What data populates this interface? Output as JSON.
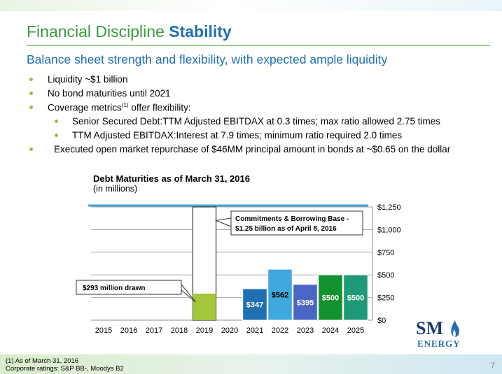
{
  "slide": {
    "title_main": "Financial Discipline",
    "title_accent": "Stability",
    "subtitle": "Balance sheet strength and flexibility, with expected ample liquidity",
    "bullets": [
      {
        "text": "Liquidity ~$1 billion",
        "level": 1
      },
      {
        "text": "No bond maturities until 2021",
        "level": 1
      },
      {
        "text": "Coverage metrics",
        "sup": "(1)",
        "text_after": " offer flexibility:",
        "level": 1
      },
      {
        "text": "Senior Secured Debt:TTM Adjusted EBITDAX at 0.3 times; max ratio allowed 2.75 times",
        "level": 2
      },
      {
        "text": "TTM Adjusted EBITDAX:Interest at 7.9 times; minimum ratio required 2.0 times",
        "level": 2
      },
      {
        "text": "Executed open market repurchase of $46MM principal amount in bonds at ~$0.65 on the dollar",
        "level": 1
      }
    ],
    "footnotes": [
      "(1) As of March 31, 2016",
      "Corporate ratings: S&P BB-, Moodys B2"
    ],
    "page_number": "7",
    "logo": {
      "letters": "SM",
      "word": "ENERGY",
      "icon": "flame-icon"
    }
  },
  "colors": {
    "title_green": "#3a9a43",
    "title_blue": "#1f6fb2",
    "bullet_green": "#8dc43f",
    "bar_2019": "#a3c63b",
    "bar_2021": "#1f6fb2",
    "bar_2022": "#3fa9de",
    "bar_2023": "#4a66c4",
    "bar_2024": "#11922e",
    "bar_2025": "#1f9a78",
    "base_line": "#3fa6d4"
  },
  "chart_data": {
    "type": "bar",
    "title": "Debt Maturities as of March 31, 2016",
    "subtitle": "(in millions)",
    "categories": [
      "2015",
      "2016",
      "2017",
      "2018",
      "2019",
      "2020",
      "2021",
      "2022",
      "2023",
      "2024",
      "2025"
    ],
    "values": [
      0,
      0,
      0,
      0,
      293,
      0,
      347,
      562,
      395,
      500,
      500
    ],
    "bar_labels": [
      "",
      "",
      "",
      "",
      "",
      "",
      "$347",
      "$562",
      "$395",
      "$500",
      "$500"
    ],
    "ylim": [
      0,
      1250
    ],
    "yticks": [
      0,
      250,
      500,
      750,
      1000,
      1250
    ],
    "ytick_labels": [
      "$0",
      "$250",
      "$500",
      "$750",
      "$1,000",
      "$1,250"
    ],
    "y_axis_side": "right",
    "grid": true,
    "facility": {
      "category": "2019",
      "capacity": 1250,
      "drawn": 293
    },
    "reference_line": 1250,
    "annotations": [
      {
        "text": "$293 million drawn"
      },
      {
        "text": "Commitments & Borrowing Base -",
        "text2": "$1.25 billion as of April 8, 2016"
      }
    ]
  }
}
